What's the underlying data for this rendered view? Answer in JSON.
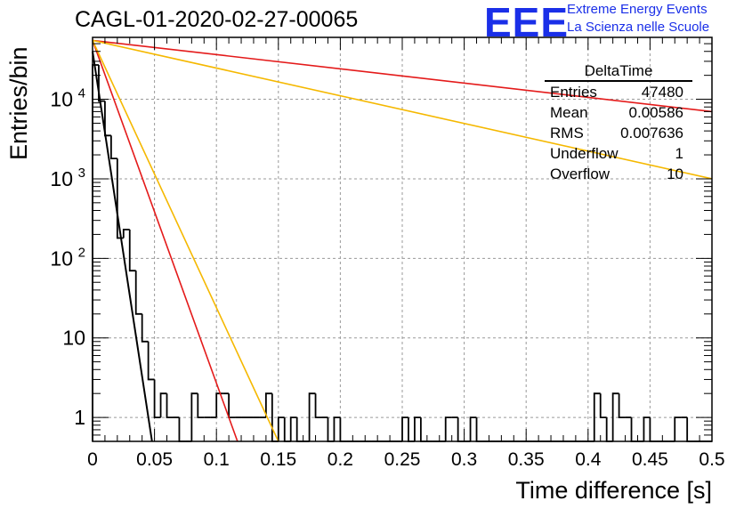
{
  "header": {
    "title": "CAGL-01-2020-02-27-00065",
    "logo_text": "EEE",
    "logo_line1": "Extreme Energy Events",
    "logo_line2": "La Scienza nelle Scuole"
  },
  "stats": {
    "title": "DeltaTime",
    "rows": [
      {
        "label": "Entries",
        "value": "47480"
      },
      {
        "label": "Mean",
        "value": "0.00586"
      },
      {
        "label": "RMS",
        "value": "0.007636"
      },
      {
        "label": "Underflow",
        "value": "1"
      },
      {
        "label": "Overflow",
        "value": "10"
      }
    ]
  },
  "chart_data": {
    "type": "histogram",
    "title": "CAGL-01-2020-02-27-00065",
    "xlabel": "Time difference [s]",
    "ylabel": "Entries/bin",
    "xlim": [
      0,
      0.5
    ],
    "ylim": [
      0.5,
      60000
    ],
    "yscale": "log",
    "grid": true,
    "x_ticks": [
      "0",
      "0.05",
      "0.1",
      "0.15",
      "0.2",
      "0.25",
      "0.3",
      "0.35",
      "0.4",
      "0.45",
      "0.5"
    ],
    "y_ticks": [
      "1",
      "10",
      "10^2",
      "10^3",
      "10^4"
    ],
    "bin_width": 0.005,
    "histogram": [
      {
        "x": 0.0,
        "count": 27000
      },
      {
        "x": 0.005,
        "count": 9500
      },
      {
        "x": 0.01,
        "count": 3500
      },
      {
        "x": 0.015,
        "count": 1800
      },
      {
        "x": 0.02,
        "count": 180
      },
      {
        "x": 0.025,
        "count": 230
      },
      {
        "x": 0.03,
        "count": 70
      },
      {
        "x": 0.035,
        "count": 20
      },
      {
        "x": 0.04,
        "count": 9
      },
      {
        "x": 0.045,
        "count": 3
      },
      {
        "x": 0.05,
        "count": 1
      },
      {
        "x": 0.055,
        "count": 2
      },
      {
        "x": 0.06,
        "count": 1
      },
      {
        "x": 0.065,
        "count": 1
      },
      {
        "x": 0.08,
        "count": 2
      },
      {
        "x": 0.085,
        "count": 1
      },
      {
        "x": 0.09,
        "count": 1
      },
      {
        "x": 0.095,
        "count": 1
      },
      {
        "x": 0.1,
        "count": 2
      },
      {
        "x": 0.105,
        "count": 2
      },
      {
        "x": 0.11,
        "count": 1
      },
      {
        "x": 0.115,
        "count": 1
      },
      {
        "x": 0.12,
        "count": 1
      },
      {
        "x": 0.125,
        "count": 1
      },
      {
        "x": 0.13,
        "count": 1
      },
      {
        "x": 0.135,
        "count": 1
      },
      {
        "x": 0.14,
        "count": 2
      },
      {
        "x": 0.15,
        "count": 1
      },
      {
        "x": 0.16,
        "count": 1
      },
      {
        "x": 0.175,
        "count": 2
      },
      {
        "x": 0.18,
        "count": 1
      },
      {
        "x": 0.185,
        "count": 1
      },
      {
        "x": 0.195,
        "count": 1
      },
      {
        "x": 0.25,
        "count": 1
      },
      {
        "x": 0.26,
        "count": 1
      },
      {
        "x": 0.285,
        "count": 1
      },
      {
        "x": 0.29,
        "count": 1
      },
      {
        "x": 0.305,
        "count": 1
      },
      {
        "x": 0.405,
        "count": 2
      },
      {
        "x": 0.41,
        "count": 1
      },
      {
        "x": 0.42,
        "count": 2
      },
      {
        "x": 0.425,
        "count": 1
      },
      {
        "x": 0.43,
        "count": 1
      },
      {
        "x": 0.445,
        "count": 1
      },
      {
        "x": 0.47,
        "count": 1
      },
      {
        "x": 0.475,
        "count": 1
      }
    ],
    "fit_lines": [
      {
        "color": "#000000",
        "width": 2,
        "points": [
          [
            0.0,
            40000
          ],
          [
            0.048,
            0.5
          ]
        ]
      },
      {
        "color": "#e41a1a",
        "width": 1.6,
        "points": [
          [
            0.0,
            55000
          ],
          [
            0.117,
            0.5
          ]
        ]
      },
      {
        "color": "#f5b800",
        "width": 1.6,
        "points": [
          [
            0.0,
            55000
          ],
          [
            0.15,
            0.5
          ]
        ]
      },
      {
        "color": "#e41a1a",
        "width": 1.6,
        "points": [
          [
            0.0,
            55000
          ],
          [
            0.5,
            7000
          ]
        ]
      },
      {
        "color": "#f5b800",
        "width": 1.6,
        "points": [
          [
            0.0,
            55000
          ],
          [
            0.5,
            1000
          ]
        ]
      }
    ]
  }
}
